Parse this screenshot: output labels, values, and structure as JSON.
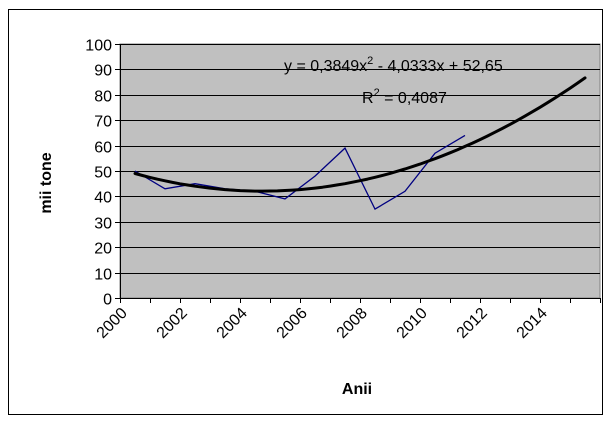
{
  "chart_data": {
    "type": "line",
    "title": "",
    "xlabel": "Anii",
    "ylabel": "mii tone",
    "xlim": [
      2000,
      2016
    ],
    "ylim": [
      0,
      100
    ],
    "x_ticks": [
      2000,
      2002,
      2004,
      2006,
      2008,
      2010,
      2012,
      2014
    ],
    "y_ticks": [
      0,
      10,
      20,
      30,
      40,
      50,
      60,
      70,
      80,
      90,
      100
    ],
    "grid": "horizontal",
    "legend": "none",
    "plot_background": "#c0c0c0",
    "series": [
      {
        "color": "#000080",
        "x": [
          2000.5,
          2001.5,
          2002.5,
          2003.5,
          2004.5,
          2005.5,
          2006.5,
          2007.5,
          2008.5,
          2009.5,
          2010.5,
          2011.5
        ],
        "y": [
          50,
          43,
          45,
          43,
          42,
          39,
          48,
          59,
          35,
          42,
          57,
          64
        ]
      },
      {
        "color": "#000000",
        "trendline": "polynomial",
        "x_start": 2000.5,
        "x_end": 2015.5,
        "coefficients": [
          0.3849,
          -4.0333,
          52.65
        ]
      }
    ],
    "annotations": {
      "equation": {
        "parts": [
          "y = 0,3849x",
          "2",
          " - 4,0333x + 52,65"
        ]
      },
      "r_squared": {
        "parts": [
          "R",
          "2",
          " = 0,4087"
        ]
      }
    }
  }
}
